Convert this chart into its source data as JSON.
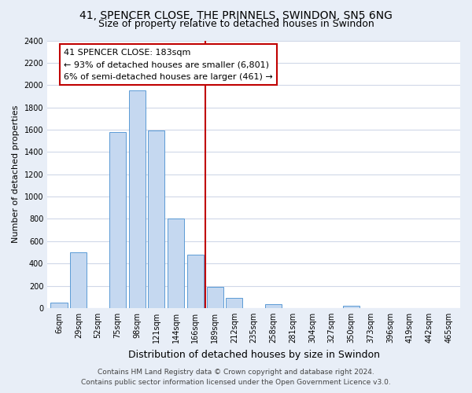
{
  "title": "41, SPENCER CLOSE, THE PRINNELS, SWINDON, SN5 6NG",
  "subtitle": "Size of property relative to detached houses in Swindon",
  "xlabel": "Distribution of detached houses by size in Swindon",
  "ylabel": "Number of detached properties",
  "bar_labels": [
    "6sqm",
    "29sqm",
    "52sqm",
    "75sqm",
    "98sqm",
    "121sqm",
    "144sqm",
    "166sqm",
    "189sqm",
    "212sqm",
    "235sqm",
    "258sqm",
    "281sqm",
    "304sqm",
    "327sqm",
    "350sqm",
    "373sqm",
    "396sqm",
    "419sqm",
    "442sqm",
    "465sqm"
  ],
  "bar_heights": [
    50,
    500,
    0,
    1580,
    1950,
    1590,
    800,
    480,
    190,
    90,
    0,
    35,
    0,
    0,
    0,
    20,
    0,
    0,
    0,
    0,
    0
  ],
  "bar_color": "#c5d8f0",
  "bar_edge_color": "#5b9bd5",
  "vline_color": "#c00000",
  "vline_x": 7.5,
  "annotation_title": "41 SPENCER CLOSE: 183sqm",
  "annotation_line1": "← 93% of detached houses are smaller (6,801)",
  "annotation_line2": "6% of semi-detached houses are larger (461) →",
  "annotation_box_facecolor": "#ffffff",
  "annotation_box_edgecolor": "#c00000",
  "ylim": [
    0,
    2400
  ],
  "yticks": [
    0,
    200,
    400,
    600,
    800,
    1000,
    1200,
    1400,
    1600,
    1800,
    2000,
    2200,
    2400
  ],
  "footer_line1": "Contains HM Land Registry data © Crown copyright and database right 2024.",
  "footer_line2": "Contains public sector information licensed under the Open Government Licence v3.0.",
  "fig_bg_color": "#e8eef7",
  "plot_bg_color": "#ffffff",
  "grid_color": "#d0d8e8",
  "title_fontsize": 10,
  "subtitle_fontsize": 9,
  "ylabel_fontsize": 8,
  "xlabel_fontsize": 9,
  "tick_fontsize": 7,
  "annotation_fontsize": 8,
  "footer_fontsize": 6.5
}
